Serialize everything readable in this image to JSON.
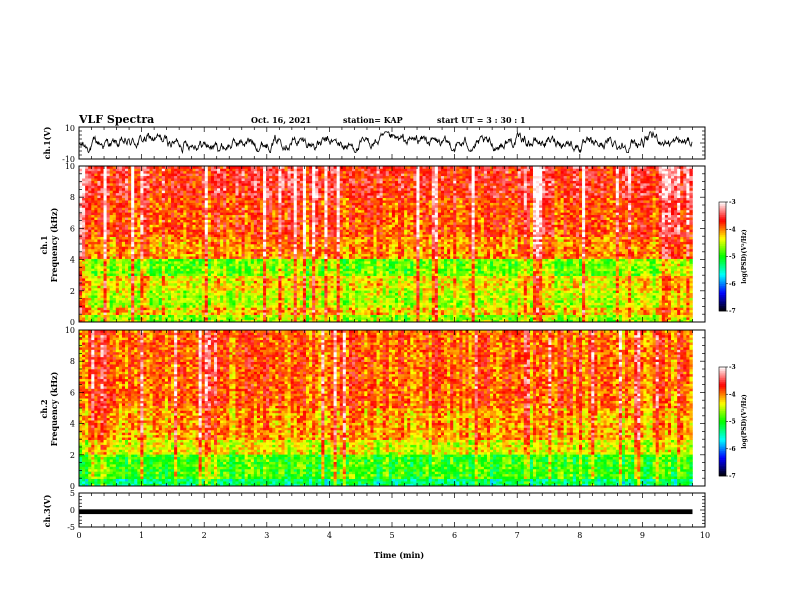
{
  "header": {
    "title": "VLF Spectra",
    "date": "Oct. 16, 2021",
    "station": "station= KAP",
    "start": "start  UT =  3 : 30 : 1"
  },
  "panels": {
    "ch1_wave": {
      "ylabel": "ch.1(V)",
      "yticks": [
        "10",
        "-10"
      ]
    },
    "ch1_spec": {
      "ylabel_ch": "ch.1",
      "ylabel": "Frequency  (kHz)",
      "yticks": [
        "0",
        "2",
        "4",
        "6",
        "8",
        "10"
      ]
    },
    "ch2_spec": {
      "ylabel_ch": "ch.2",
      "ylabel": "Frequency  (kHz)",
      "yticks": [
        "0",
        "2",
        "4",
        "6",
        "8",
        "10"
      ]
    },
    "ch3_wave": {
      "ylabel": "ch.3(V)",
      "yticks": [
        "5",
        "0",
        "-5"
      ]
    }
  },
  "x_axis": {
    "label": "Time  (min)",
    "ticks": [
      "0",
      "1",
      "2",
      "3",
      "4",
      "5",
      "6",
      "7",
      "8",
      "9",
      "10"
    ]
  },
  "colorbar": {
    "label": "log(PSD)(V²/Hz)",
    "ticks": [
      "-3",
      "-4",
      "-5",
      "-6",
      "-7"
    ]
  },
  "chart_data": [
    {
      "type": "line",
      "name": "ch.1 waveform",
      "ylabel": "ch.1(V)",
      "xlim": [
        0,
        10
      ],
      "ylim": [
        -10,
        10
      ],
      "data_extent_x": [
        0,
        9.8
      ],
      "envelope": {
        "min": -6,
        "max": 7
      }
    },
    {
      "type": "heatmap",
      "name": "ch.1 spectrogram",
      "ylabel": "Frequency  (kHz)",
      "xlim": [
        0,
        10
      ],
      "ylim": [
        0,
        10
      ],
      "data_extent_x": [
        0,
        9.8
      ],
      "colorscale": {
        "min": -7,
        "max": -3,
        "colors": [
          "#000000",
          "#0000ff",
          "#00ffff",
          "#00ff00",
          "#ffff00",
          "#ff0000",
          "#ffffff"
        ]
      },
      "band_levels": [
        {
          "f": [
            0,
            0.5
          ],
          "log_psd": -4.6
        },
        {
          "f": [
            0.5,
            1.0
          ],
          "log_psd": -4.2
        },
        {
          "f": [
            1.0,
            2.0
          ],
          "log_psd": -4.5
        },
        {
          "f": [
            2.0,
            3.0
          ],
          "log_psd": -4.3
        },
        {
          "f": [
            3.0,
            4.0
          ],
          "log_psd": -4.7
        },
        {
          "f": [
            4.0,
            5.5
          ],
          "log_psd": -4.0
        },
        {
          "f": [
            5.5,
            8.0
          ],
          "log_psd": -3.8
        },
        {
          "f": [
            8.0,
            10.0
          ],
          "log_psd": -3.6
        }
      ]
    },
    {
      "type": "heatmap",
      "name": "ch.2 spectrogram",
      "ylabel": "Frequency  (kHz)",
      "xlim": [
        0,
        10
      ],
      "ylim": [
        0,
        10
      ],
      "data_extent_x": [
        0,
        9.8
      ],
      "colorscale": {
        "min": -7,
        "max": -3,
        "colors": [
          "#000000",
          "#0000ff",
          "#00ffff",
          "#00ff00",
          "#ffff00",
          "#ff0000",
          "#ffffff"
        ]
      },
      "band_levels": [
        {
          "f": [
            0,
            0.5
          ],
          "log_psd": -5.3
        },
        {
          "f": [
            0.5,
            2.0
          ],
          "log_psd": -4.9
        },
        {
          "f": [
            2.0,
            3.0
          ],
          "log_psd": -4.4
        },
        {
          "f": [
            3.0,
            5.0
          ],
          "log_psd": -4.1
        },
        {
          "f": [
            5.0,
            10.0
          ],
          "log_psd": -3.9
        }
      ]
    },
    {
      "type": "line",
      "name": "ch.3 waveform",
      "ylabel": "ch.3(V)",
      "xlim": [
        0,
        10
      ],
      "ylim": [
        -5,
        5
      ],
      "data_extent_x": [
        0,
        9.8
      ],
      "envelope": {
        "min": -1.2,
        "max": 0.2
      }
    }
  ]
}
